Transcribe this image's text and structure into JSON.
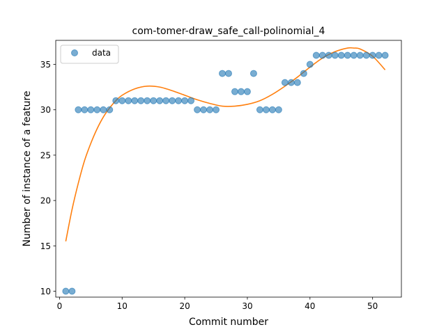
{
  "chart_data": {
    "type": "scatter",
    "title": "com-tomer-draw_safe_call-polinomial_4",
    "xlabel": "Commit number",
    "ylabel": "Number of instance of a feature",
    "xlim": [
      -0.6,
      54.6
    ],
    "ylim": [
      9.35,
      37.65
    ],
    "xticks": [
      0,
      10,
      20,
      30,
      40,
      50
    ],
    "yticks": [
      10,
      15,
      20,
      25,
      30,
      35
    ],
    "grid": false,
    "legend": {
      "placement": "top-left",
      "entries": [
        "data"
      ]
    },
    "series": [
      {
        "name": "data",
        "kind": "markers",
        "color": "#1f77b4",
        "x": [
          1,
          2,
          3,
          4,
          5,
          6,
          7,
          8,
          9,
          10,
          11,
          12,
          13,
          14,
          15,
          16,
          17,
          18,
          19,
          20,
          21,
          22,
          23,
          24,
          25,
          26,
          27,
          28,
          29,
          30,
          31,
          32,
          33,
          34,
          35,
          36,
          37,
          38,
          39,
          40,
          41,
          42,
          43,
          44,
          45,
          46,
          47,
          48,
          49,
          50,
          51,
          52
        ],
        "y": [
          10,
          10,
          30,
          30,
          30,
          30,
          30,
          30,
          31,
          31,
          31,
          31,
          31,
          31,
          31,
          31,
          31,
          31,
          31,
          31,
          31,
          30,
          30,
          30,
          30,
          34,
          34,
          32,
          32,
          32,
          34,
          30,
          30,
          30,
          30,
          33,
          33,
          33,
          34,
          35,
          36,
          36,
          36,
          36,
          36,
          36,
          36,
          36,
          36,
          36,
          36,
          36
        ]
      },
      {
        "kind": "fit-curve",
        "color": "#ff7f0e",
        "x": [
          1,
          2,
          3,
          4,
          5,
          6,
          7,
          8,
          9,
          10,
          12,
          14,
          16,
          18,
          20,
          22,
          24,
          26,
          28,
          30,
          32,
          34,
          36,
          38,
          40,
          42,
          44,
          46,
          47,
          48,
          50,
          52
        ],
        "y": [
          15.5,
          19.0,
          21.9,
          24.4,
          26.3,
          27.9,
          29.2,
          30.2,
          31.0,
          31.6,
          32.3,
          32.6,
          32.5,
          32.1,
          31.6,
          31.1,
          30.7,
          30.4,
          30.4,
          30.6,
          31.0,
          31.7,
          32.6,
          33.6,
          34.7,
          35.7,
          36.4,
          36.8,
          36.8,
          36.7,
          35.9,
          34.4
        ]
      }
    ]
  }
}
